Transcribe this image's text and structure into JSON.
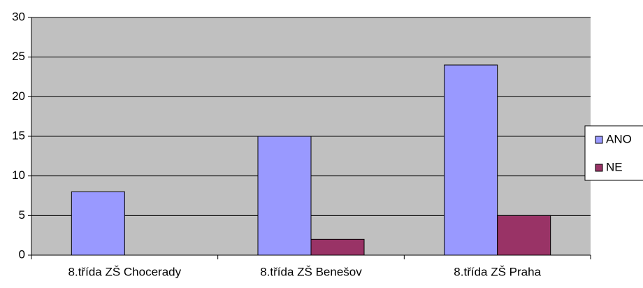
{
  "chart_data": {
    "type": "bar",
    "categories": [
      "8.třída ZŠ Chocerady",
      "8.třída ZŠ Benešov",
      "8.třída ZŠ Praha"
    ],
    "series": [
      {
        "name": "ANO",
        "color": "#9999ff",
        "values": [
          8,
          15,
          24
        ]
      },
      {
        "name": "NE",
        "color": "#993366",
        "values": [
          0,
          2,
          5
        ]
      }
    ],
    "ylim": [
      0,
      30
    ],
    "yticks": [
      0,
      5,
      10,
      15,
      20,
      25,
      30
    ],
    "grid": true,
    "legend": "right"
  }
}
